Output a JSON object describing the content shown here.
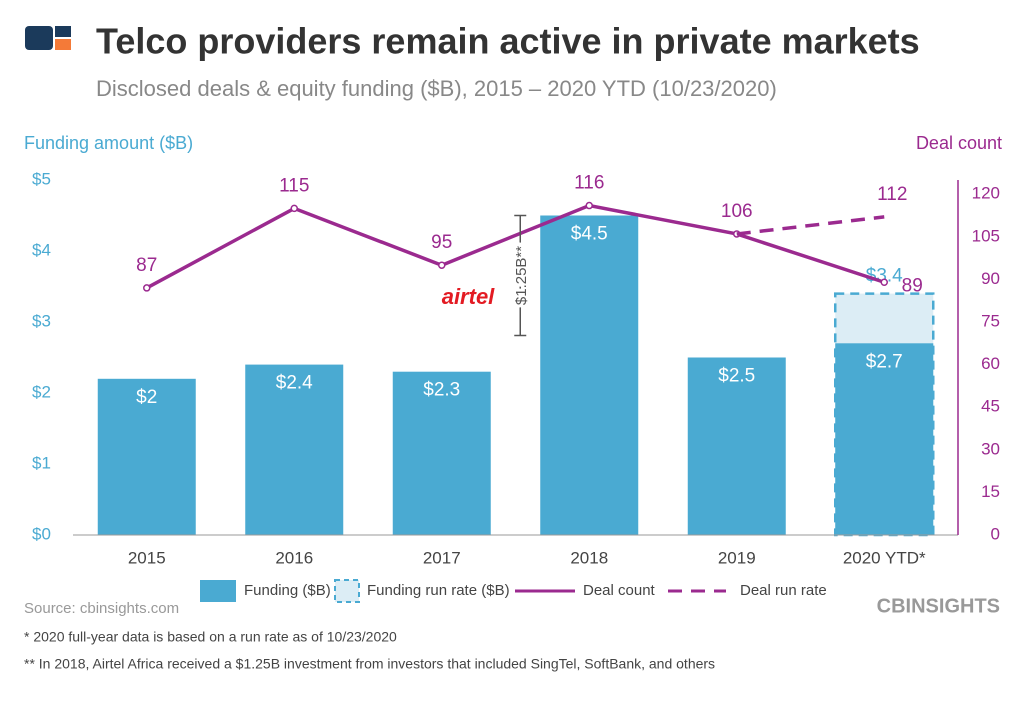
{
  "chart_data": {
    "type": "bar_line",
    "title": "Telco providers remain active in private markets",
    "subtitle": "Disclosed deals & equity funding ($B), 2015 – 2020 YTD (10/23/2020)",
    "y_label": "Funding amount ($B)",
    "y2_label": "Deal count",
    "categories": [
      "2015",
      "2016",
      "2017",
      "2018",
      "2019",
      "2020 YTD*"
    ],
    "series": [
      {
        "name": "Funding ($B)",
        "kind": "bar",
        "color": "#4aaad2",
        "values": [
          2.2,
          2.4,
          2.3,
          4.5,
          2.5,
          2.7
        ],
        "value_labels": [
          "$2",
          "$2.4",
          "$2.3",
          "$4.5",
          "$2.5",
          "$2.7"
        ]
      },
      {
        "name": "Funding run rate ($B)",
        "kind": "bar_dashed",
        "color": "#dcedf5",
        "values": [
          null,
          null,
          null,
          null,
          null,
          3.4
        ],
        "value_labels": [
          null,
          null,
          null,
          null,
          null,
          "$3.4"
        ]
      },
      {
        "name": "Deal count",
        "kind": "line",
        "axis": "y2",
        "color": "#9b2a8f",
        "values": [
          87,
          115,
          95,
          116,
          106,
          89
        ]
      },
      {
        "name": "Deal run rate",
        "kind": "line_dashed",
        "axis": "y2",
        "color": "#9b2a8f",
        "values": [
          null,
          null,
          null,
          null,
          106,
          112
        ]
      }
    ],
    "ylim": [
      0,
      5
    ],
    "yticks": [
      {
        "value": 0,
        "label": "$0"
      },
      {
        "value": 1,
        "label": "$1"
      },
      {
        "value": 2,
        "label": "$2"
      },
      {
        "value": 3,
        "label": "$3"
      },
      {
        "value": 4,
        "label": "$4"
      },
      {
        "value": 5,
        "label": "$5"
      }
    ],
    "y2lim": [
      0,
      125
    ],
    "y2ticks": [
      0,
      15,
      30,
      45,
      60,
      75,
      90,
      105,
      120
    ],
    "annotation": "$1.25B**",
    "logo_text": "airtel",
    "source": "Source: cbinsights.com",
    "brand": "CBINSIGHTS",
    "footnotes": [
      "* 2020 full-year data is based on a run rate as of 10/23/2020",
      "** In 2018, Airtel Africa received a $1.25B investment from investors that included SingTel, SoftBank, and others"
    ]
  }
}
